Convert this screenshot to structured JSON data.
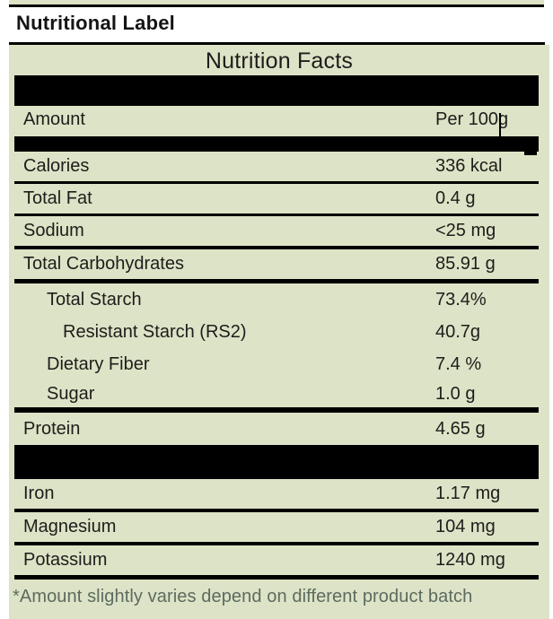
{
  "document": {
    "title": "Nutritional Label"
  },
  "label": {
    "header": "Nutrition Facts",
    "amount_row": {
      "label": "Amount",
      "value": "Per 100g"
    },
    "rows": [
      {
        "label": "Calories",
        "value": "336 kcal"
      },
      {
        "label": "Total Fat",
        "value": "0.4 g"
      },
      {
        "label": "Sodium",
        "value": "<25 mg"
      },
      {
        "label": "Total Carbohydrates",
        "value": "85.91 g"
      },
      {
        "label": "Total Starch",
        "value": "73.4%"
      },
      {
        "label": "Resistant Starch (RS2)",
        "value": "40.7g"
      },
      {
        "label": "Dietary Fiber",
        "value": "7.4 %"
      },
      {
        "label": "Sugar",
        "value": "1.0 g"
      },
      {
        "label": "Protein",
        "value": "4.65 g"
      },
      {
        "label": "Iron",
        "value": "1.17 mg"
      },
      {
        "label": "Magnesium",
        "value": "104 mg"
      },
      {
        "label": "Potassium",
        "value": "1240 mg"
      }
    ],
    "footnote": "*Amount slightly varies depend on different product batch"
  },
  "colors": {
    "label_background": "#dde3c6",
    "divider_black": "#000000",
    "text": "#1d1d1b",
    "footnote_text": "#5c6b60",
    "page_background": "#ffffff"
  }
}
